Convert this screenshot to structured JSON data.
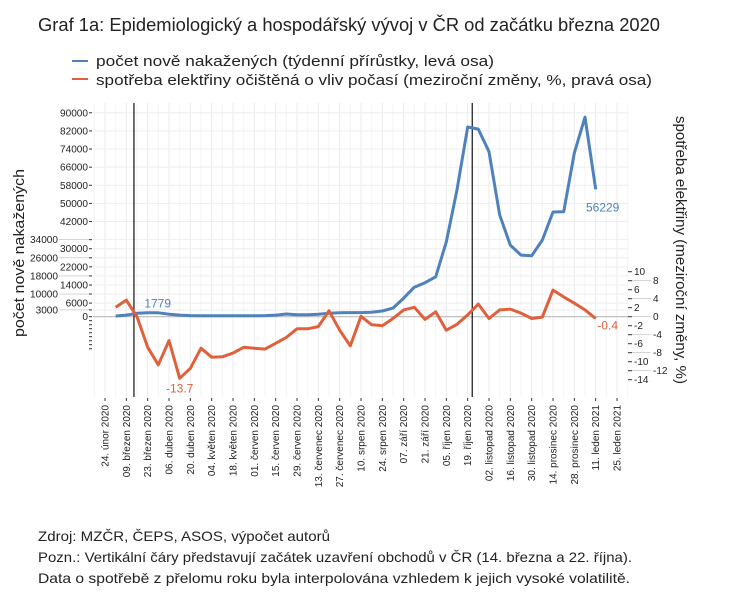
{
  "chart_data": {
    "type": "line",
    "title": "Graf 1a: Epidemiologický a hospodářský vývoj v ČR od začátku března 2020",
    "ylabel_left": "počet nově nakažených",
    "ylabel_right": "spotřeba elektřiny (meziroční změny, %)",
    "legend_placement": "top",
    "grid": true,
    "x_ticks": [
      "24. únor 2020",
      "09. březen 2020",
      "23. březen 2020",
      "06. duben 2020",
      "20. duben 2020",
      "04. květen 2020",
      "18. květen 2020",
      "01. červen 2020",
      "15. červen 2020",
      "29. červen 2020",
      "13. červenec 2020",
      "27. červenec 2020",
      "10. srpen 2020",
      "24. srpen 2020",
      "07. září 2020",
      "21. září 2020",
      "05. říjen 2020",
      "19. říjen 2020",
      "02. listopad 2020",
      "16. listopad 2020",
      "30. listopad 2020",
      "14. prosinec 2020",
      "28. prosinec 2020",
      "11. leden 2021",
      "25. leden 2021"
    ],
    "x_tick_dates": [
      "2020-02-24",
      "2020-03-09",
      "2020-03-23",
      "2020-04-06",
      "2020-04-20",
      "2020-05-04",
      "2020-05-18",
      "2020-06-01",
      "2020-06-15",
      "2020-06-29",
      "2020-07-13",
      "2020-07-27",
      "2020-08-10",
      "2020-08-24",
      "2020-09-07",
      "2020-09-21",
      "2020-10-05",
      "2020-10-19",
      "2020-11-02",
      "2020-11-16",
      "2020-11-30",
      "2020-12-14",
      "2020-12-28",
      "2021-01-11",
      "2021-01-25"
    ],
    "x": [
      "2020-03-02",
      "2020-03-09",
      "2020-03-16",
      "2020-03-23",
      "2020-03-30",
      "2020-04-06",
      "2020-04-13",
      "2020-04-20",
      "2020-04-27",
      "2020-05-04",
      "2020-05-11",
      "2020-05-18",
      "2020-05-25",
      "2020-06-01",
      "2020-06-08",
      "2020-06-15",
      "2020-06-22",
      "2020-06-29",
      "2020-07-06",
      "2020-07-13",
      "2020-07-20",
      "2020-07-27",
      "2020-08-03",
      "2020-08-10",
      "2020-08-17",
      "2020-08-24",
      "2020-08-31",
      "2020-09-07",
      "2020-09-14",
      "2020-09-21",
      "2020-09-28",
      "2020-10-05",
      "2020-10-12",
      "2020-10-19",
      "2020-10-26",
      "2020-11-02",
      "2020-11-09",
      "2020-11-16",
      "2020-11-23",
      "2020-11-30",
      "2020-12-07",
      "2020-12-14",
      "2020-12-21",
      "2020-12-28",
      "2021-01-04",
      "2021-01-11"
    ],
    "left_axis": {
      "ylim": [
        -14000,
        90000
      ],
      "ticks": [
        90000,
        82000,
        74000,
        66000,
        58000,
        50000,
        42000,
        34000,
        30000,
        26000,
        22000,
        18000,
        14000,
        10000,
        6000,
        3000,
        0
      ]
    },
    "right_axis": {
      "ylim": [
        -14,
        10
      ],
      "ticks": [
        10,
        8,
        6,
        4,
        2,
        0,
        -2,
        -4,
        -6,
        -8,
        -10,
        -12,
        -14
      ]
    },
    "vertical_lines": [
      "2020-03-14",
      "2020-10-22"
    ],
    "series": [
      {
        "name": "počet nově nakažených (týdenní přírůstky, levá osa)",
        "axis": "left",
        "color": "#4f81bd",
        "values": [
          300,
          700,
          1500,
          1779,
          1700,
          1100,
          700,
          500,
          450,
          400,
          400,
          450,
          450,
          450,
          500,
          700,
          1200,
          900,
          900,
          1100,
          1500,
          1700,
          1800,
          1800,
          2000,
          2500,
          3800,
          8200,
          13000,
          15000,
          17600,
          33000,
          56000,
          83700,
          82800,
          72800,
          44900,
          31600,
          27200,
          26900,
          33800,
          46200,
          46300,
          72200,
          88100,
          56229
        ]
      },
      {
        "name": "spotřeba elektřiny očištěná o vliv počasí (meziroční změny, %, pravá osa)",
        "axis": "right",
        "color": "#e0603c",
        "values": [
          2.1,
          3.7,
          0,
          -6.8,
          -10.7,
          -5.3,
          -13.7,
          -11.5,
          -7.0,
          -9.0,
          -8.9,
          -8.1,
          -6.8,
          -7.0,
          -7.2,
          -5.9,
          -4.6,
          -2.7,
          -2.7,
          -2.2,
          1.3,
          -3.0,
          -6.5,
          0.1,
          -1.8,
          -2.0,
          -0.4,
          1.5,
          2.1,
          -0.6,
          1.1,
          -3.0,
          -1.7,
          0.4,
          2.8,
          -0.4,
          1.5,
          1.7,
          0.8,
          -0.4,
          -0.1,
          5.9,
          4.4,
          3.0,
          1.5,
          -0.4
        ]
      }
    ],
    "annotations": [
      {
        "text": "1779",
        "series": 0,
        "x": "2020-03-23"
      },
      {
        "text": "-13.7",
        "series": 1,
        "x": "2020-04-13"
      },
      {
        "text": "56229",
        "series": 0,
        "x": "2021-01-11"
      },
      {
        "text": "-0.4",
        "series": 1,
        "x": "2021-01-11"
      }
    ]
  },
  "footer": {
    "source": "Zdroj: MZČR, ČEPS, ASOS, výpočet autorů",
    "note1": "Pozn.: Vertikální čáry představují začátek uzavření obchodů v ČR (14. března a 22. října).",
    "note2": "Data o spotřebě z přelomu roku byla interpolována vzhledem k jejich vysoké volatilitě."
  }
}
